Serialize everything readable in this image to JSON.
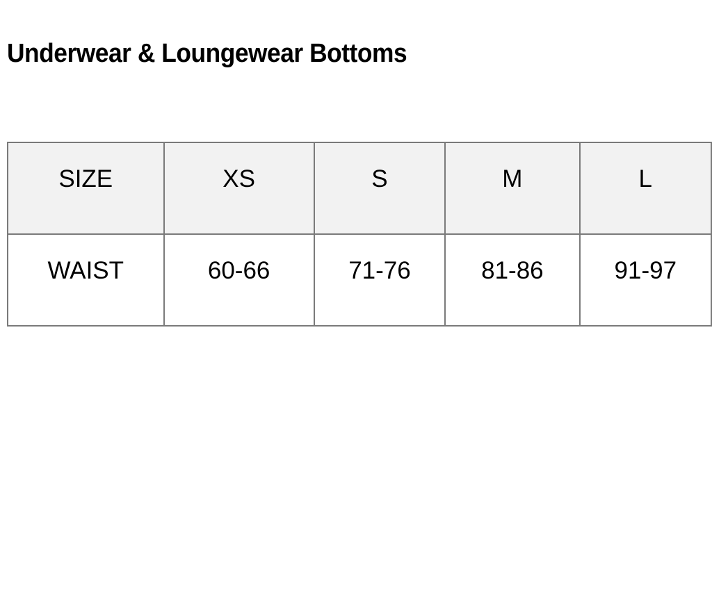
{
  "title": "Underwear & Loungewear Bottoms",
  "table": {
    "header": [
      "SIZE",
      "XS",
      "S",
      "M",
      "L"
    ],
    "rows": [
      [
        "WAIST",
        "60-66",
        "71-76",
        "81-86",
        "91-97"
      ]
    ]
  },
  "colors": {
    "header_bg": "#f2f2f2",
    "border": "#7a7a7a"
  }
}
